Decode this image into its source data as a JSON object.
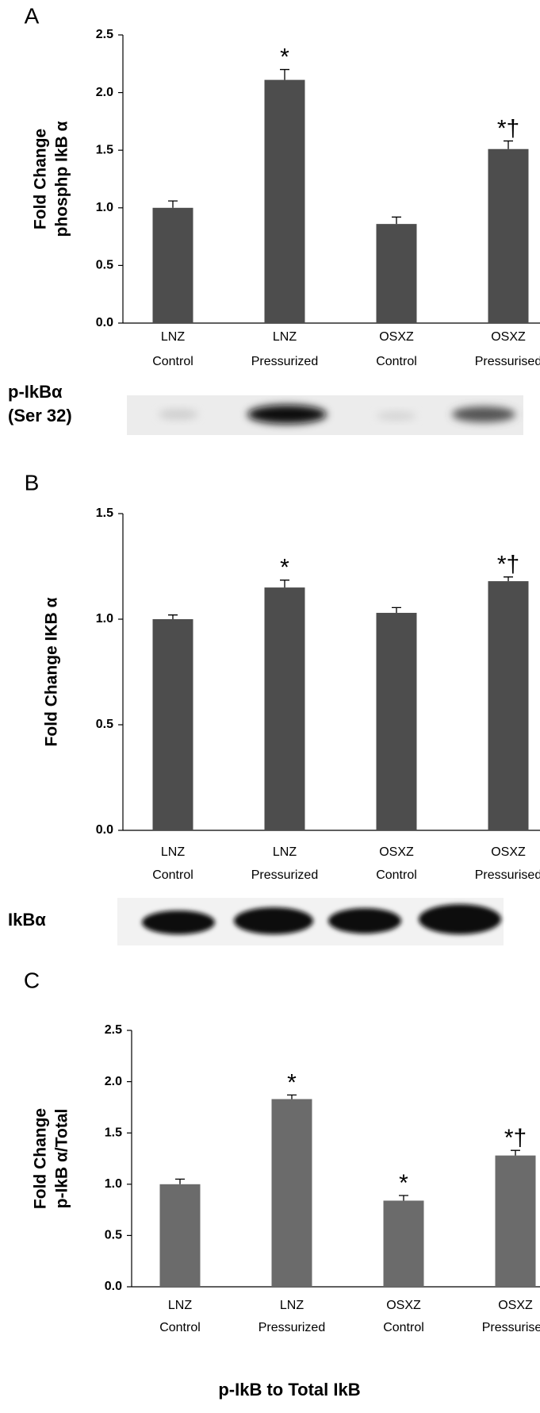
{
  "chart_data": [
    {
      "type": "bar",
      "panel": "A",
      "ylabel": [
        "Fold Change",
        "phosphp IkB α"
      ],
      "categories": [
        [
          "LNZ",
          "Control"
        ],
        [
          "LNZ",
          "Pressurized"
        ],
        [
          "OSXZ",
          "Control"
        ],
        [
          "OSXZ",
          "Pressurised"
        ]
      ],
      "values": [
        1.0,
        2.11,
        0.86,
        1.51
      ],
      "errors": [
        0.06,
        0.09,
        0.06,
        0.07
      ],
      "annotations": [
        null,
        "*",
        null,
        "*†"
      ],
      "color": "#4d4d4d",
      "ylim": [
        0,
        2.5
      ],
      "yticks": [
        {
          "value": 0,
          "label": "0.0"
        },
        0.5,
        {
          "value": 1,
          "label": "1.0"
        },
        1.5,
        {
          "value": 2,
          "label": "2.0"
        },
        2.5
      ],
      "blot_label": [
        "p-IkBα",
        "(Ser 32)"
      ]
    },
    {
      "type": "bar",
      "panel": "B",
      "ylabel": [
        "Fold Change IKB α"
      ],
      "categories": [
        [
          "LNZ",
          "Control"
        ],
        [
          "LNZ",
          "Pressurized"
        ],
        [
          "OSXZ",
          "Control"
        ],
        [
          "OSXZ",
          "Pressurised"
        ]
      ],
      "values": [
        1.0,
        1.15,
        1.03,
        1.18
      ],
      "errors": [
        0.02,
        0.035,
        0.025,
        0.02
      ],
      "annotations": [
        null,
        "*",
        null,
        "*†"
      ],
      "color": "#4d4d4d",
      "ylim": [
        0,
        1.5
      ],
      "yticks": [
        {
          "value": 0,
          "label": "0.0"
        },
        0.5,
        {
          "value": 1,
          "label": "1.0"
        },
        1.5
      ],
      "blot_label": [
        "IkBα"
      ]
    },
    {
      "type": "bar",
      "panel": "C",
      "ylabel": [
        "Fold Change",
        "p-IkB α/Total"
      ],
      "categories": [
        [
          "LNZ",
          "Control"
        ],
        [
          "LNZ",
          "Pressurized"
        ],
        [
          "OSXZ",
          "Control"
        ],
        [
          "OSXZ",
          "Pressurised"
        ]
      ],
      "values": [
        1.0,
        1.83,
        0.84,
        1.28
      ],
      "errors": [
        0.05,
        0.04,
        0.05,
        0.05
      ],
      "annotations": [
        null,
        "*",
        "*",
        "*†"
      ],
      "color": "#6b6b6b",
      "ylim": [
        0,
        2.5
      ],
      "yticks": [
        {
          "value": 0,
          "label": "0.0"
        },
        0.5,
        {
          "value": 1,
          "label": "1.0"
        },
        1.5,
        {
          "value": 2,
          "label": "2.0"
        },
        2.5
      ],
      "xlabel": "p-IkB to Total IkB"
    }
  ]
}
